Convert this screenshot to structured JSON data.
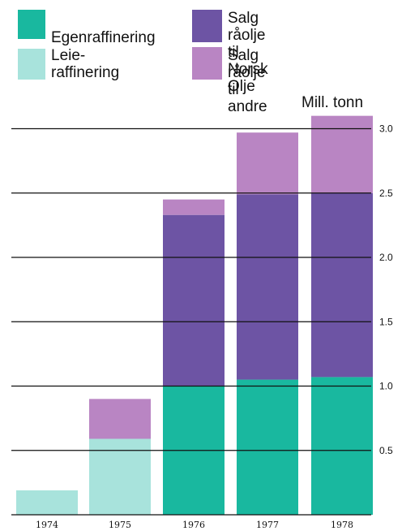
{
  "chart_data": {
    "type": "bar",
    "stacked": true,
    "unit_label": "Mill. tonn",
    "categories": [
      "1974",
      "1975",
      "1976",
      "1977",
      "1978"
    ],
    "y_ticks": [
      "0.5",
      "1.0",
      "1.5",
      "2.0",
      "2.5",
      "3.0"
    ],
    "ylim": [
      0,
      3.1
    ],
    "grid": true,
    "legend_position": "top",
    "series": [
      {
        "key": "egen",
        "name": "Egenraffinering",
        "color": "#19b89f",
        "values": [
          0,
          0,
          1.0,
          1.05,
          1.07
        ]
      },
      {
        "key": "leie",
        "name": "Leie-\nraffinering",
        "color": "#a8e3dc",
        "values": [
          0.19,
          0.59,
          0,
          0,
          0
        ]
      },
      {
        "key": "norsk",
        "name": "Salg råolje\ntil Norsk Olje",
        "color": "#6d54a4",
        "values": [
          0,
          0,
          1.33,
          1.44,
          1.43
        ]
      },
      {
        "key": "andre",
        "name": "Salg råolje\ntil andre",
        "color": "#b985c3",
        "values": [
          0,
          0.31,
          0.12,
          0.48,
          0.6
        ]
      }
    ]
  }
}
